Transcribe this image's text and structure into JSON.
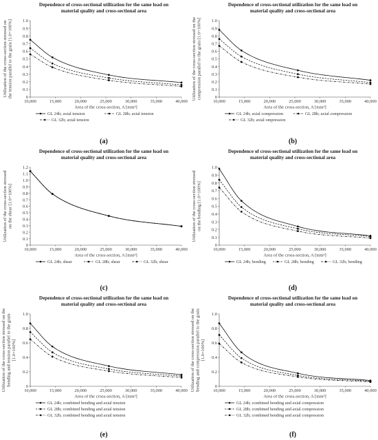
{
  "chart_data": [
    {
      "id": "a",
      "type": "line",
      "caption": "(a)",
      "title_lines": [
        "Dependence of cross-sectional utilization  for the same load on",
        "material quality and cross-sectional area"
      ],
      "ylabel_lines": [
        "Utilization of the cross-section stressed on",
        "the tension parallel to the grain [1.0=100%]"
      ],
      "xlabel": "Area of the cross-section, A [mm²]",
      "xlim": [
        10000,
        40000
      ],
      "xticks": [
        10000,
        15000,
        20000,
        25000,
        30000,
        35000,
        40000
      ],
      "xtick_labels": [
        "10,000",
        "15,000",
        "20,000",
        "25,000",
        "30,000",
        "35,000",
        "40,000"
      ],
      "ylim": [
        0,
        1.0
      ],
      "yticks": [
        0,
        0.1,
        0.2,
        0.3,
        0.4,
        0.5,
        0.6,
        0.7,
        0.8,
        0.9,
        1.0
      ],
      "ytick_labels": [
        "0",
        "0.1",
        "0.2",
        "0.3",
        "0.4",
        "0.5",
        "0.6",
        "0.7",
        "0.8",
        "0.9",
        "1.0"
      ],
      "legend_rows": [
        [
          0,
          1
        ],
        [
          2
        ]
      ],
      "marker_x": [
        10000,
        14400,
        25600,
        40000
      ],
      "series": [
        {
          "name": "GL 24h; axial tension",
          "style": "solid",
          "values": [
            0.75,
            0.52,
            0.29,
            0.19
          ]
        },
        {
          "name": "GL 28h; axial tension",
          "style": "dashed",
          "values": [
            0.64,
            0.44,
            0.25,
            0.16
          ]
        },
        {
          "name": "GL 32h; axial tension",
          "style": "dashdot",
          "values": [
            0.56,
            0.39,
            0.22,
            0.14
          ]
        }
      ]
    },
    {
      "id": "b",
      "type": "line",
      "caption": "(b)",
      "title_lines": [
        "Dependence of cross-sectional utilization  for the same load on",
        "material quality and cross-sectional area"
      ],
      "ylabel_lines": [
        "Utilization of the cross-section stressed on the",
        "compression parallel to the grain [1.0=100%]"
      ],
      "xlabel": "Area of the cross-section, A [mm²]",
      "xlim": [
        10000,
        40000
      ],
      "xticks": [
        10000,
        15000,
        20000,
        25000,
        30000,
        35000,
        40000
      ],
      "xtick_labels": [
        "10,000",
        "15,000",
        "20,000",
        "25,000",
        "30,000",
        "35,000",
        "40,000"
      ],
      "ylim": [
        0,
        1.0
      ],
      "yticks": [
        0,
        0.1,
        0.2,
        0.3,
        0.4,
        0.5,
        0.6,
        0.7,
        0.8,
        0.9,
        1.0
      ],
      "ytick_labels": [
        "0",
        "0.1",
        "0.2",
        "0.3",
        "0.4",
        "0.5",
        "0.6",
        "0.7",
        "0.8",
        "0.9",
        "1.0"
      ],
      "legend_rows": [
        [
          0,
          1
        ],
        [
          2
        ]
      ],
      "marker_x": [
        10000,
        14400,
        25600,
        40000
      ],
      "series": [
        {
          "name": "GL 24h; axial compression",
          "style": "solid",
          "values": [
            0.88,
            0.61,
            0.35,
            0.22
          ]
        },
        {
          "name": "GL 28h; axial compression",
          "style": "dashed",
          "values": [
            0.76,
            0.53,
            0.3,
            0.19
          ]
        },
        {
          "name": "GL 32h; axial ompression",
          "style": "dashdot",
          "values": [
            0.67,
            0.46,
            0.26,
            0.17
          ]
        }
      ]
    },
    {
      "id": "c",
      "type": "line",
      "caption": "(c)",
      "title_lines": [
        "Dependence of cross-sectional utilization  for the same load on",
        "material quality and cross-sectional area"
      ],
      "ylabel_lines": [
        "Utilization of the cross-section stressed",
        "on the shear [1.0=100%]"
      ],
      "xlabel": "Area of the cross-section, A [mm²]",
      "xlim": [
        10000,
        40000
      ],
      "xticks": [
        10000,
        15000,
        20000,
        25000,
        30000,
        35000,
        40000
      ],
      "xtick_labels": [
        "10,000",
        "15,000",
        "20,000",
        "25,000",
        "30,000",
        "35,000",
        "40,000"
      ],
      "ylim": [
        0,
        1.2
      ],
      "yticks": [
        0,
        0.1,
        0.2,
        0.3,
        0.4,
        0.5,
        0.6,
        0.7,
        0.8,
        0.9,
        1.0,
        1.1,
        1.2
      ],
      "ytick_labels": [
        "0",
        "0.1",
        "0.2",
        "0.3",
        "0.4",
        "0.5",
        "0.6",
        "0.7",
        "0.8",
        "0.9",
        "1.0",
        "1.1",
        "1.2"
      ],
      "legend_rows": [
        [
          0,
          1,
          2
        ]
      ],
      "marker_x": [
        10000,
        14400,
        25600,
        40000
      ],
      "series": [
        {
          "name": "GL 24h; shear",
          "style": "solid",
          "values": [
            1.14,
            0.79,
            0.45,
            0.29
          ]
        },
        {
          "name": "GL 28h; shear",
          "style": "dashed",
          "values": [
            1.14,
            0.79,
            0.45,
            0.29
          ]
        },
        {
          "name": "GL 32h; shear",
          "style": "dashdot",
          "values": [
            1.14,
            0.79,
            0.45,
            0.29
          ]
        }
      ]
    },
    {
      "id": "d",
      "type": "line",
      "caption": "(d)",
      "title_lines": [
        "Dependence of cross-sectional utilization  for the same load on",
        "material quality and cross-sectional area"
      ],
      "ylabel_lines": [
        "Utilization of the cross-section stressed",
        "on the bending [1.0=100%]"
      ],
      "xlabel": "Area of the cross-section, A [mm²]",
      "xlim": [
        10000,
        40000
      ],
      "xticks": [
        10000,
        15000,
        20000,
        25000,
        30000,
        35000,
        40000
      ],
      "xtick_labels": [
        "10,000",
        "15,000",
        "20,000",
        "25,000",
        "30,000",
        "35,000",
        "40,000"
      ],
      "ylim": [
        0,
        1.0
      ],
      "yticks": [
        0,
        0.1,
        0.2,
        0.3,
        0.4,
        0.5,
        0.6,
        0.7,
        0.8,
        0.9,
        1.0
      ],
      "ytick_labels": [
        "0",
        "0.1",
        "0.2",
        "0.3",
        "0.4",
        "0.5",
        "0.6",
        "0.7",
        "0.8",
        "0.9",
        "1.0"
      ],
      "legend_rows": [
        [
          0,
          1,
          2
        ]
      ],
      "marker_x": [
        10000,
        14400,
        25600,
        40000
      ],
      "series": [
        {
          "name": "GL 24h; bending",
          "style": "solid",
          "values": [
            0.98,
            0.57,
            0.24,
            0.12
          ]
        },
        {
          "name": "GL 28h; bending",
          "style": "dashed",
          "values": [
            0.84,
            0.49,
            0.21,
            0.11
          ]
        },
        {
          "name": "GL 32h; bending",
          "style": "dashdot",
          "values": [
            0.74,
            0.43,
            0.18,
            0.09
          ]
        }
      ]
    },
    {
      "id": "e",
      "type": "line",
      "caption": "(e)",
      "title_lines": [
        "Dependence of cross-sectional utilization  for the same load on",
        "material quality and cross-sectional area"
      ],
      "ylabel_lines": [
        "Utilization of the cross-section stressed on the",
        "bending and tension parallel to the grain",
        "[1.0=100%]"
      ],
      "xlabel": "Area of the cross-section, A [mm²]",
      "xlim": [
        10000,
        40000
      ],
      "xticks": [
        10000,
        15000,
        20000,
        25000,
        30000,
        35000,
        40000
      ],
      "xtick_labels": [
        "10,000",
        "15,000",
        "20,000",
        "25,000",
        "30,000",
        "35,000",
        "40,000"
      ],
      "ylim": [
        0,
        1.0
      ],
      "yticks": [
        0,
        0.2,
        0.4,
        0.6,
        0.8,
        1.0
      ],
      "ytick_labels": [
        "0",
        "0.2",
        "0.4",
        "0.6",
        "0.8",
        "1.0"
      ],
      "legend_rows": [
        [
          0
        ],
        [
          1
        ],
        [
          2
        ]
      ],
      "marker_x": [
        10000,
        14400,
        25600,
        40000
      ],
      "series": [
        {
          "name": "GL 24h; combined bending and axial tension",
          "style": "solid",
          "values": [
            0.87,
            0.55,
            0.28,
            0.16
          ]
        },
        {
          "name": "GL 28h; combined bending and axial tension",
          "style": "dashed",
          "values": [
            0.75,
            0.47,
            0.24,
            0.14
          ]
        },
        {
          "name": "GL 32h; combined bending and axial tension",
          "style": "dashdot",
          "values": [
            0.65,
            0.41,
            0.21,
            0.12
          ]
        }
      ]
    },
    {
      "id": "f",
      "type": "line",
      "caption": "(f)",
      "title_lines": [
        "Dependence of cross-sectional utilization  for the same load on",
        "material quality and cross-sectional area"
      ],
      "ylabel_lines": [
        "Utilization of the cross-section stressed on the",
        "bending and compression parallel to the grain",
        "[1.0=100%]"
      ],
      "xlabel": "Area of the cross-section, A [mm²]",
      "xlim": [
        10000,
        40000
      ],
      "xticks": [
        10000,
        15000,
        20000,
        25000,
        30000,
        35000,
        40000
      ],
      "xtick_labels": [
        "10,000",
        "15,000",
        "20,000",
        "25,000",
        "30,000",
        "35,000",
        "40,000"
      ],
      "ylim": [
        0,
        1.0
      ],
      "yticks": [
        0,
        0.2,
        0.4,
        0.6,
        0.8,
        1.0
      ],
      "ytick_labels": [
        "0",
        "0.2",
        "0.4",
        "0.6",
        "0.8",
        "1.0"
      ],
      "legend_rows": [
        [
          0
        ],
        [
          1
        ],
        [
          2
        ]
      ],
      "marker_x": [
        10000,
        14400,
        25600,
        40000
      ],
      "series": [
        {
          "name": "GL 24h; combined bending and axial compression",
          "style": "solid",
          "values": [
            0.87,
            0.47,
            0.18,
            0.08
          ]
        },
        {
          "name": "GL 28h; combined bending and axial compression",
          "style": "dashed",
          "values": [
            0.71,
            0.39,
            0.15,
            0.07
          ]
        },
        {
          "name": "GL 32h; combined bending and axial compression",
          "style": "dashdot",
          "values": [
            0.59,
            0.33,
            0.13,
            0.06
          ]
        }
      ]
    }
  ]
}
